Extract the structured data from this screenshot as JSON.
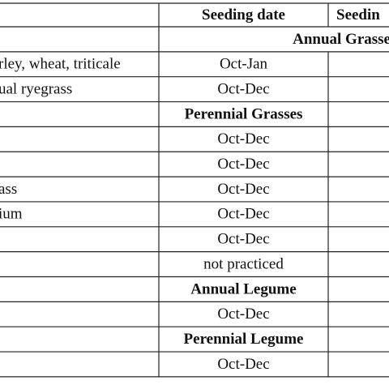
{
  "table": {
    "header": [
      "Seeding date",
      "Seedin"
    ],
    "rows": [
      {
        "section": "Annual Grasse",
        "span": true
      },
      {
        "name": "rley, wheat, triticale",
        "date": "Oct-Jan"
      },
      {
        "name": "ual ryegrass",
        "date": "Oct-Dec"
      },
      {
        "section": "Perennial Grasses"
      },
      {
        "date": "Oct-Dec"
      },
      {
        "date": "Oct-Dec"
      },
      {
        "name": "ass",
        "date": "Oct-Dec"
      },
      {
        "name": "ium",
        "date": "Oct-Dec"
      },
      {
        "date": "Oct-Dec"
      },
      {
        "date": "not practiced"
      },
      {
        "section": "Annual Legume"
      },
      {
        "date": "Oct-Dec"
      },
      {
        "section": "Perennial Legume"
      },
      {
        "date": "Oct-Dec"
      }
    ]
  }
}
